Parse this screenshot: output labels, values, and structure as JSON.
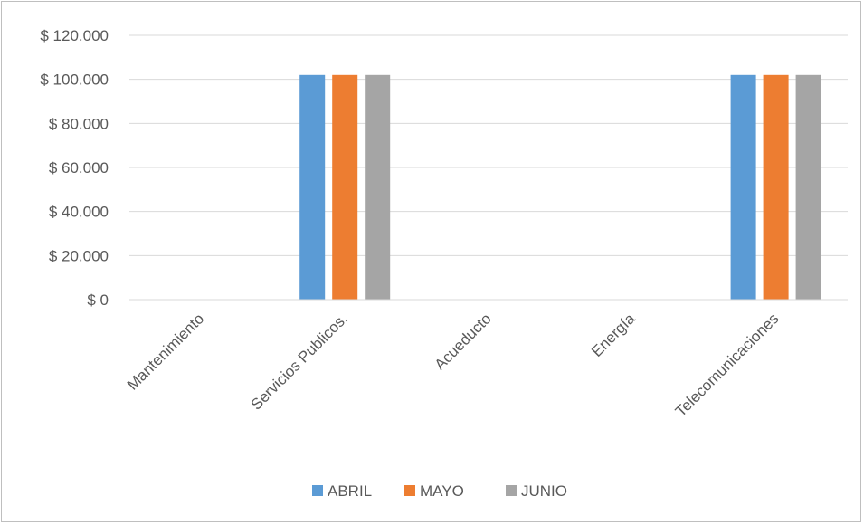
{
  "chart_data": {
    "type": "bar",
    "categories": [
      "Mantenimiento",
      "Servicios Publicos.",
      "Acueducto",
      "Energía",
      "Telecomunicaciones"
    ],
    "series": [
      {
        "name": "ABRIL",
        "color": "#5b9bd5",
        "values": [
          0,
          102000,
          0,
          0,
          102000
        ]
      },
      {
        "name": "MAYO",
        "color": "#ed7d31",
        "values": [
          0,
          102000,
          0,
          0,
          102000
        ]
      },
      {
        "name": "JUNIO",
        "color": "#a5a5a5",
        "values": [
          0,
          102000,
          0,
          0,
          102000
        ]
      }
    ],
    "y_ticks": [
      "$ 0",
      "$ 20.000",
      "$ 40.000",
      "$ 60.000",
      "$ 80.000",
      "$ 100.000",
      "$ 120.000"
    ],
    "ylim": [
      0,
      120000
    ],
    "grid": true,
    "legend_position": "bottom",
    "title": "",
    "xlabel": "",
    "ylabel": ""
  }
}
